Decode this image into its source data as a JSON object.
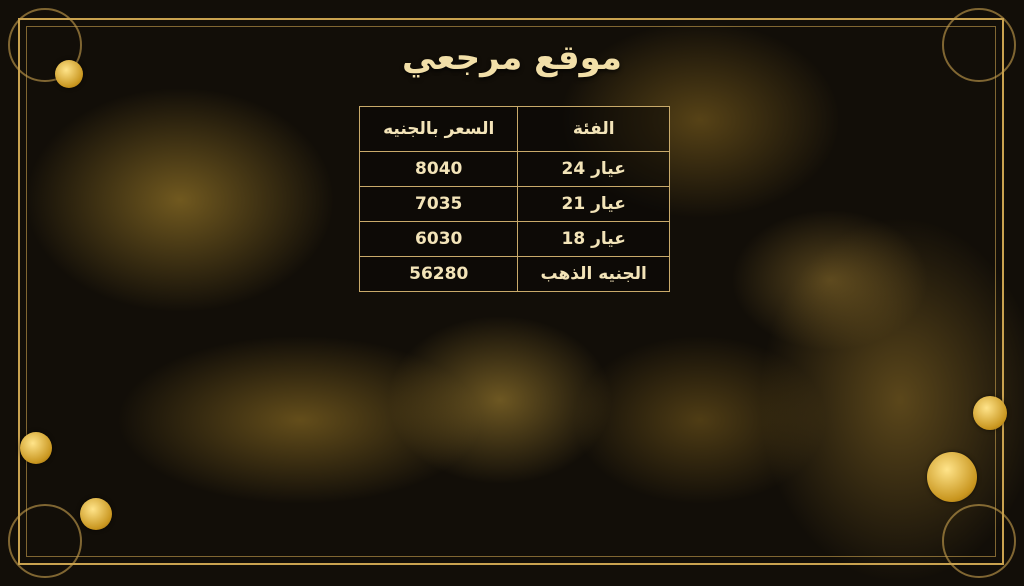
{
  "title": "موقع مرجعي",
  "table": {
    "headers": {
      "category": "الفئة",
      "price": "السعر بالجنيه"
    },
    "rows": [
      {
        "category": "عيار 24",
        "price": "8040"
      },
      {
        "category": "عيار 21",
        "price": "7035"
      },
      {
        "category": "عيار 18",
        "price": "6030"
      },
      {
        "category": "الجنيه الذهب",
        "price": "56280"
      }
    ]
  },
  "colors": {
    "frame": "#c9a24f",
    "text": "#f3e4b8",
    "background": "#120e08"
  }
}
